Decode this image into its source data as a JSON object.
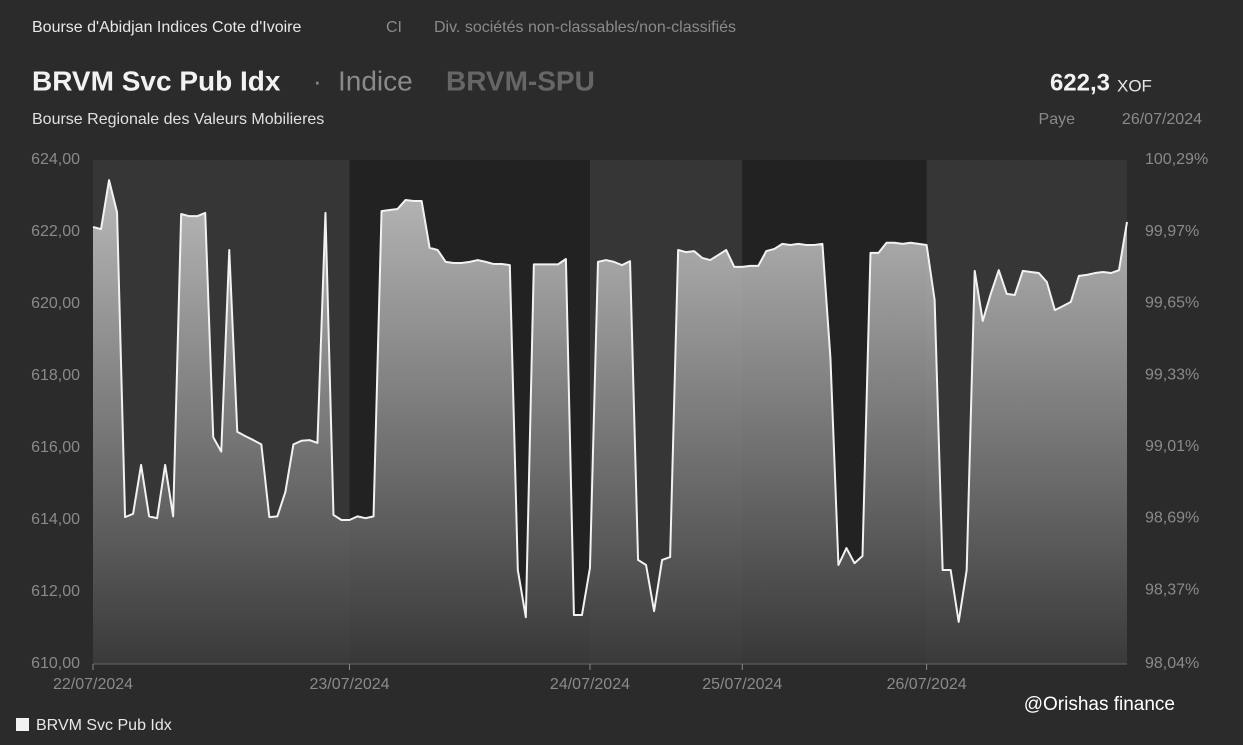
{
  "header": {
    "exchange": "Bourse d'Abidjan Indices Cote d'Ivoire",
    "country": "CI",
    "sector": "Div. sociétés non-classables/non-classifiés",
    "name": "BRVM Svc Pub Idx",
    "separator": "·",
    "kind": "Indice",
    "ticker": "BRVM-SPU",
    "price": "622,3",
    "currency": "XOF",
    "market": "Bourse Regionale des Valeurs Mobilieres",
    "status": "Paye",
    "date": "26/07/2024"
  },
  "chart_data": {
    "type": "area",
    "categories": [
      "22/07/2024",
      null,
      null,
      null,
      null,
      null,
      null,
      null,
      null,
      null,
      null,
      null,
      null,
      null,
      null,
      null,
      null,
      null,
      null,
      null,
      null,
      null,
      null,
      null,
      null,
      null,
      null,
      null,
      null,
      null,
      null,
      null,
      "23/07/2024",
      null,
      null,
      null,
      null,
      null,
      null,
      null,
      null,
      null,
      null,
      null,
      null,
      null,
      null,
      null,
      null,
      null,
      null,
      null,
      null,
      null,
      null,
      null,
      null,
      null,
      null,
      null,
      null,
      null,
      "24/07/2024",
      null,
      null,
      null,
      null,
      null,
      null,
      null,
      null,
      null,
      null,
      null,
      null,
      null,
      null,
      null,
      null,
      null,
      null,
      "25/07/2024",
      null,
      null,
      null,
      null,
      null,
      null,
      null,
      null,
      null,
      null,
      null,
      null,
      null,
      null,
      null,
      null,
      null,
      null,
      null,
      null,
      null,
      null,
      "26/07/2024",
      null,
      null,
      null,
      null,
      null,
      null,
      null,
      null,
      null,
      null,
      null,
      null,
      null,
      null,
      null,
      null,
      null,
      null,
      null,
      null,
      null,
      null,
      null,
      null,
      null
    ],
    "series": [
      {
        "name": "BRVM Svc Pub Idx",
        "color": "#f2f2f2",
        "values": [
          622.14,
          622.08,
          623.44,
          622.55,
          614.08,
          614.17,
          615.53,
          614.1,
          614.05,
          615.53,
          614.1,
          622.5,
          622.44,
          622.44,
          622.53,
          616.3,
          615.9,
          621.5,
          616.45,
          616.33,
          616.22,
          616.1,
          614.08,
          614.1,
          614.78,
          616.1,
          616.2,
          616.22,
          616.14,
          622.53,
          614.14,
          614.0,
          614.0,
          614.1,
          614.05,
          614.1,
          622.58,
          622.61,
          622.64,
          622.89,
          622.86,
          622.86,
          621.56,
          621.5,
          621.17,
          621.14,
          621.14,
          621.17,
          621.22,
          621.17,
          621.11,
          621.11,
          621.08,
          612.61,
          611.3,
          621.1,
          621.1,
          621.1,
          621.1,
          621.25,
          611.36,
          611.36,
          612.67,
          621.17,
          621.22,
          621.17,
          621.08,
          621.19,
          612.89,
          612.75,
          611.47,
          612.89,
          612.97,
          621.5,
          621.44,
          621.47,
          621.28,
          621.22,
          621.36,
          621.5,
          621.03,
          621.03,
          621.06,
          621.06,
          621.47,
          621.53,
          621.67,
          621.64,
          621.67,
          621.64,
          621.64,
          621.67,
          618.5,
          612.75,
          613.22,
          612.8,
          613.0,
          621.42,
          621.42,
          621.7,
          621.7,
          621.67,
          621.7,
          621.67,
          621.64,
          620.11,
          612.61,
          612.61,
          611.17,
          612.61,
          620.92,
          619.53,
          620.28,
          620.94,
          620.28,
          620.25,
          620.92,
          620.89,
          620.86,
          620.61,
          619.83,
          619.94,
          620.06,
          620.78,
          620.81,
          620.86,
          620.89,
          620.86,
          620.94,
          622.28
        ]
      }
    ],
    "ylim": [
      610,
      624
    ],
    "yticks": [
      {
        "value": 610,
        "label": "610,00"
      },
      {
        "value": 612,
        "label": "612,00"
      },
      {
        "value": 614,
        "label": "614,00"
      },
      {
        "value": 616,
        "label": "616,00"
      },
      {
        "value": 618,
        "label": "618,00"
      },
      {
        "value": 620,
        "label": "620,00"
      },
      {
        "value": 622,
        "label": "622,00"
      },
      {
        "value": 624,
        "label": "624,00"
      }
    ],
    "y2lim": [
      98.04,
      100.29
    ],
    "y2ticks": [
      {
        "value": 98.04,
        "label": "98,04%"
      },
      {
        "value": 98.37,
        "label": "98,37%"
      },
      {
        "value": 98.69,
        "label": "98,69%"
      },
      {
        "value": 99.01,
        "label": "99,01%"
      },
      {
        "value": 99.33,
        "label": "99,33%"
      },
      {
        "value": 99.65,
        "label": "99,65%"
      },
      {
        "value": 99.97,
        "label": "99,97%"
      },
      {
        "value": 100.29,
        "label": "100,29%"
      }
    ],
    "grid": false
  },
  "watermark": "@Orishas finance"
}
